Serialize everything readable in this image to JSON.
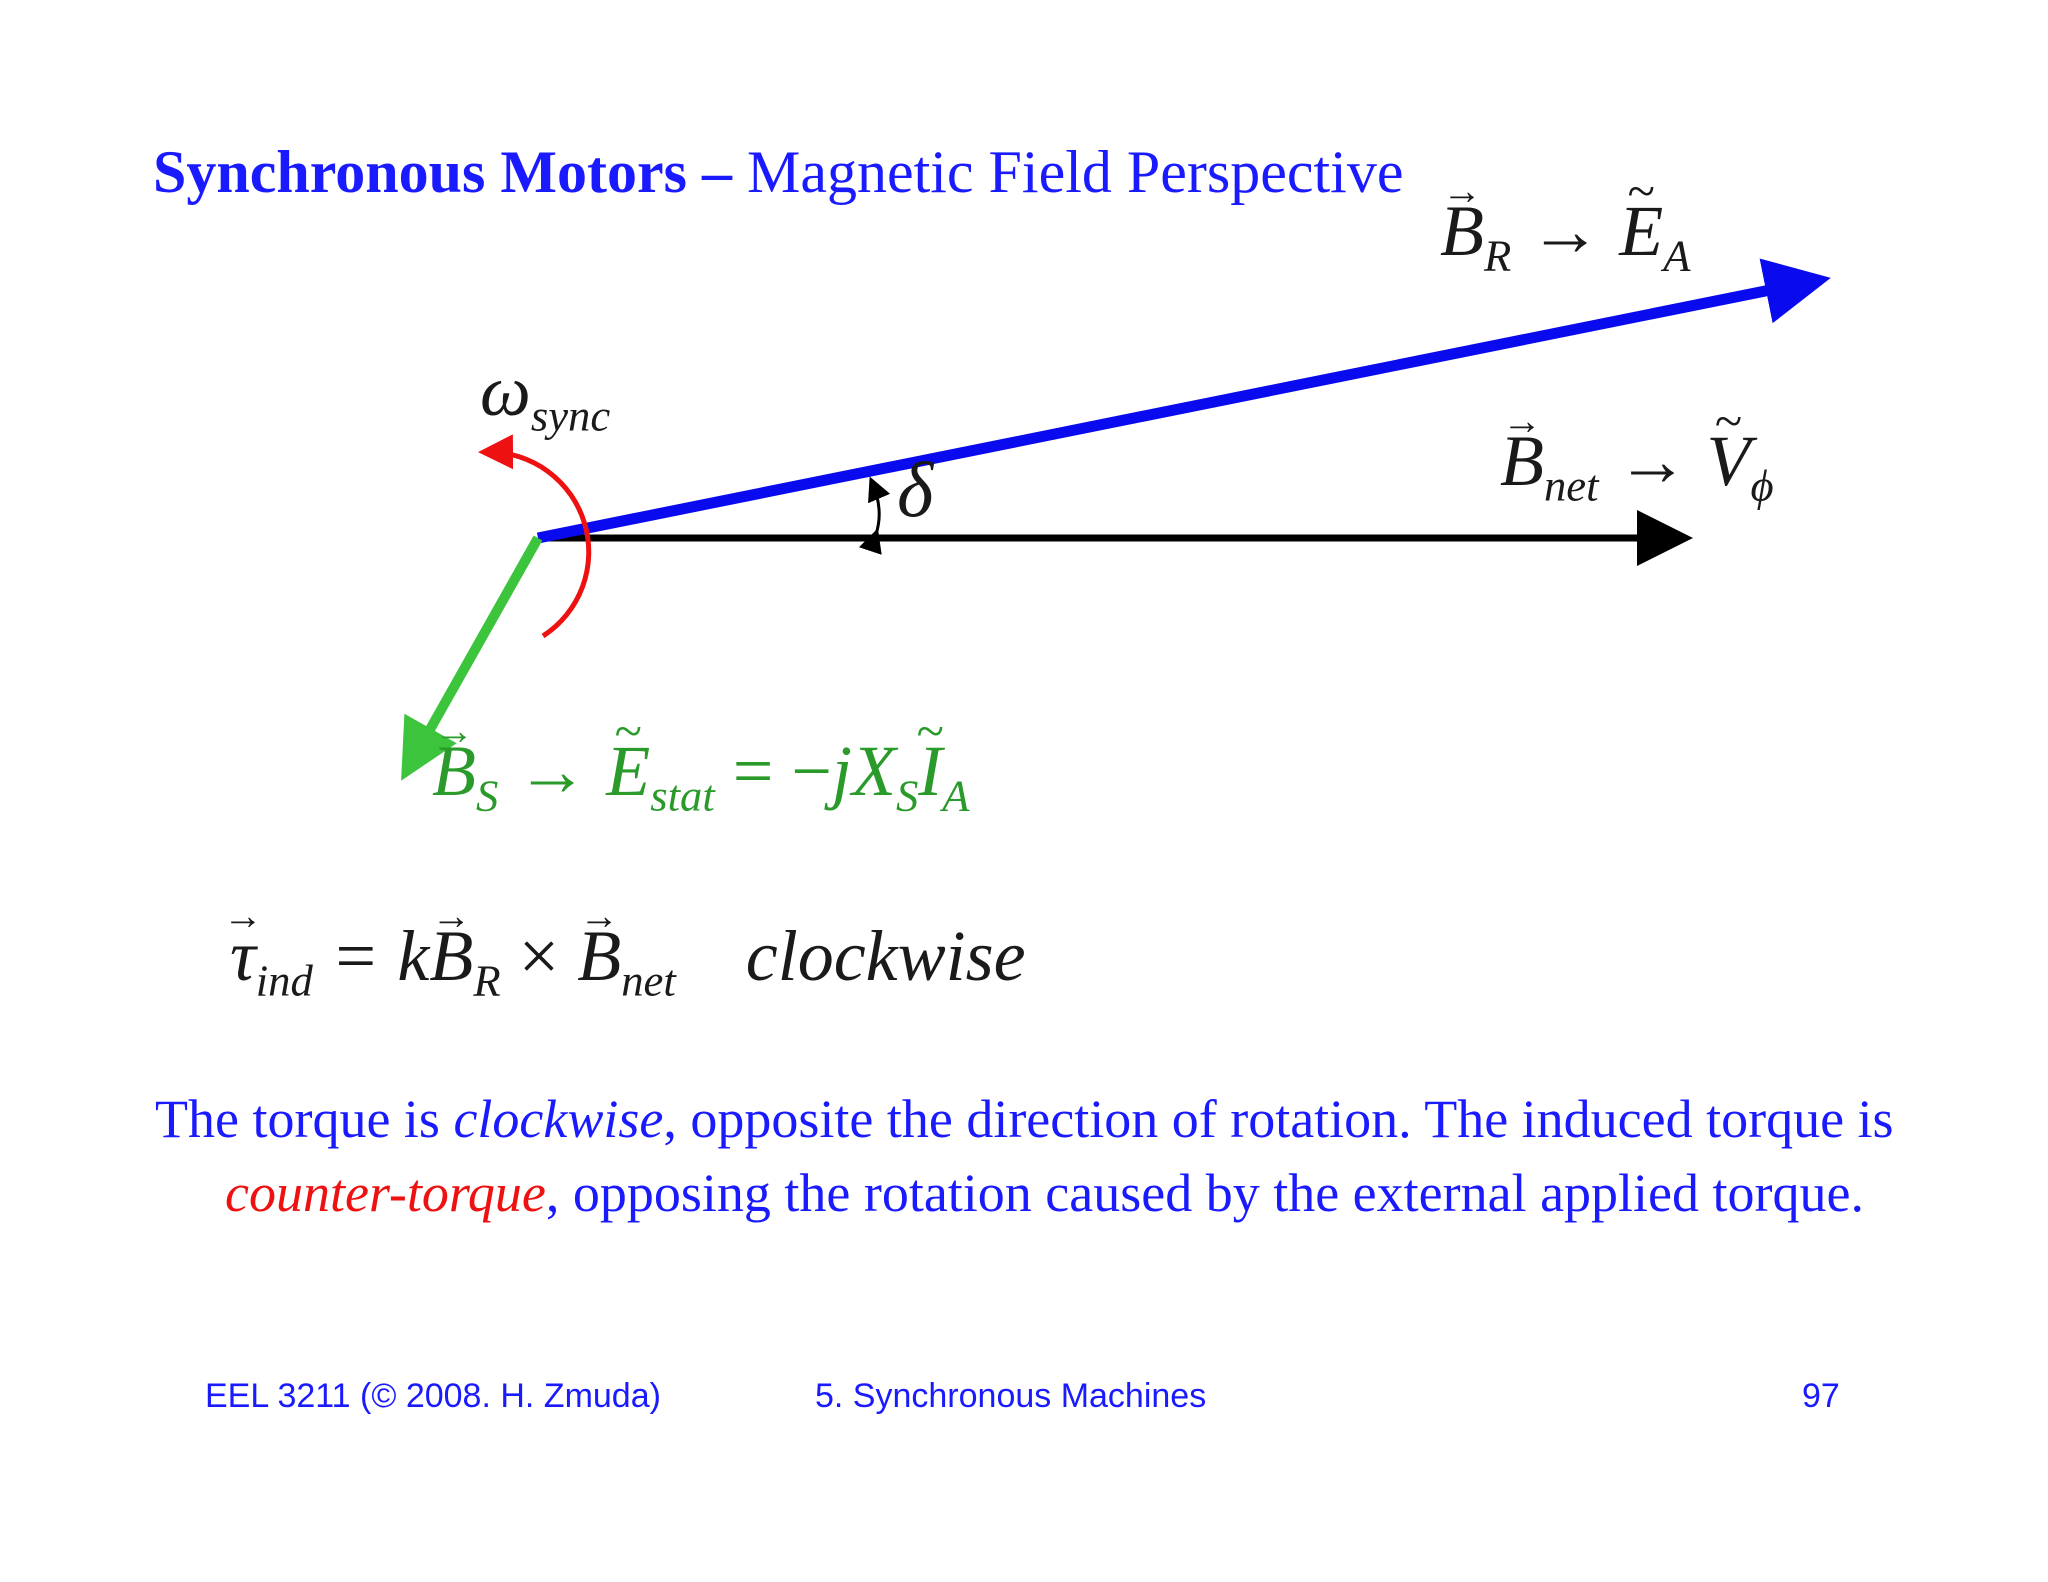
{
  "title": {
    "bold": "Synchronous Motors",
    "dash": " – ",
    "rest": "Magnetic Field Perspective"
  },
  "labels": {
    "br": {
      "base": "B",
      "sub": "R",
      "arrow": "→",
      "target": "E",
      "target_sub": "A"
    },
    "bnet": {
      "base": "B",
      "sub": "net",
      "arrow": "→",
      "target": "V",
      "target_sub": "ϕ"
    },
    "omega": {
      "base": "ω",
      "sub": "sync"
    },
    "delta": "δ",
    "bs": {
      "base": "B",
      "sub": "S",
      "arrow": "→",
      "e": "E",
      "e_sub": "stat",
      "eq": " = −",
      "j": "jX",
      "x_sub": "S",
      "i": "I",
      "i_sub": "A"
    },
    "tau": {
      "base": "τ",
      "sub": "ind",
      "eq": " = k",
      "b1": "B",
      "b1_sub": "R",
      "times": " × ",
      "b2": "B",
      "b2_sub": "net",
      "word": "clockwise"
    }
  },
  "body": {
    "p1": "The torque is ",
    "p2": "clockwise",
    "p3": ", opposite the direction of rotation. The induced torque is ",
    "p4": "counter-torque",
    "p5": ", opposing the rotation caused by the external applied torque."
  },
  "footer": {
    "left": "EEL 3211 (© 2008. H. Zmuda)",
    "center": "5. Synchronous Machines",
    "page": "97"
  },
  "colors": {
    "title": "#1a1aff",
    "br_vector": "#0a0aee",
    "bnet_vector": "#000000",
    "bs_vector": "#3cc43c",
    "rotation_arc": "#ee1111",
    "emphasis": "#ee1111"
  }
}
